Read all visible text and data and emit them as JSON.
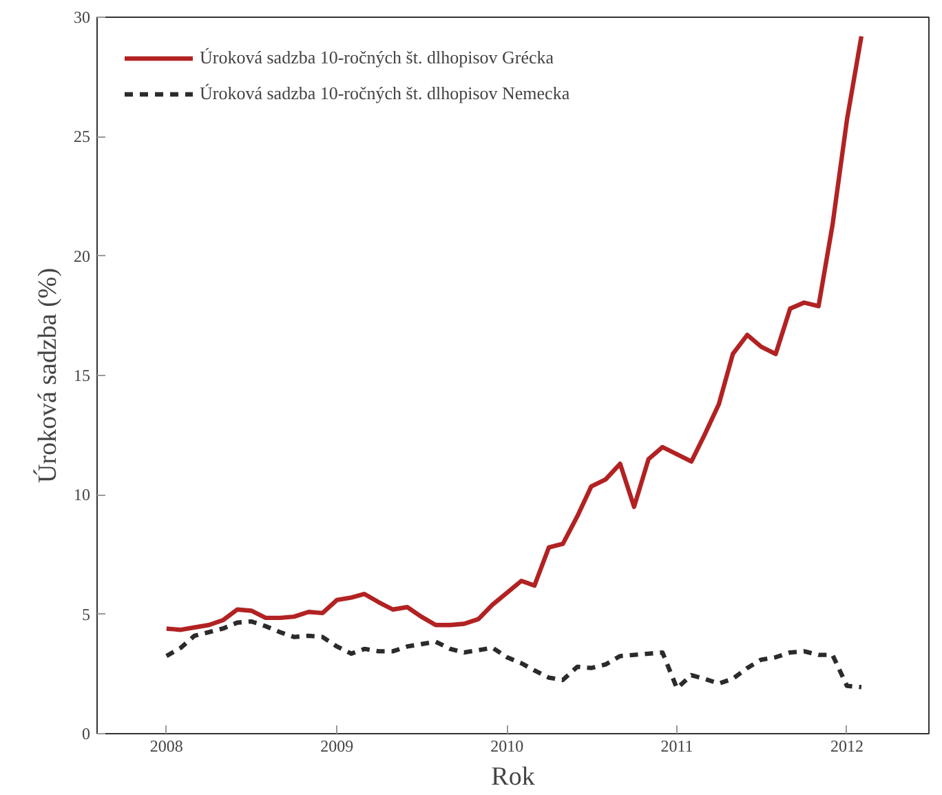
{
  "chart_data": {
    "type": "line",
    "xlabel": "Rok",
    "ylabel": "Úroková sadzba (%)",
    "x": [
      "2008-01",
      "2008-02",
      "2008-03",
      "2008-04",
      "2008-05",
      "2008-06",
      "2008-07",
      "2008-08",
      "2008-09",
      "2008-10",
      "2008-11",
      "2008-12",
      "2009-01",
      "2009-02",
      "2009-03",
      "2009-04",
      "2009-05",
      "2009-06",
      "2009-07",
      "2009-08",
      "2009-09",
      "2009-10",
      "2009-11",
      "2009-12",
      "2010-01",
      "2010-02",
      "2010-03",
      "2010-04",
      "2010-05",
      "2010-06",
      "2010-07",
      "2010-08",
      "2010-09",
      "2010-10",
      "2010-11",
      "2010-12",
      "2011-01",
      "2011-02",
      "2011-03",
      "2011-04",
      "2011-05",
      "2011-06",
      "2011-07",
      "2011-08",
      "2011-09",
      "2011-10",
      "2011-11",
      "2011-12",
      "2012-01",
      "2012-02"
    ],
    "series": [
      {
        "name": "Úroková sadzba 10-ročných št. dlhopisov Grécka",
        "color": "#b22222",
        "line_style": "solid",
        "values": [
          4.4,
          4.35,
          4.45,
          4.55,
          4.75,
          5.2,
          5.15,
          4.85,
          4.85,
          4.9,
          5.1,
          5.05,
          5.6,
          5.7,
          5.85,
          5.5,
          5.2,
          5.3,
          4.9,
          4.55,
          4.55,
          4.6,
          4.8,
          5.4,
          5.9,
          6.4,
          6.2,
          7.8,
          7.95,
          9.1,
          10.35,
          10.65,
          11.3,
          9.5,
          11.5,
          12.0,
          11.7,
          11.4,
          12.5,
          13.8,
          15.9,
          16.7,
          16.2,
          15.9,
          17.8,
          18.05,
          17.9,
          21.3,
          25.7,
          29.2
        ]
      },
      {
        "name": "Úroková sadzba 10-ročných št. dlhopisov Nemecka",
        "color": "#2b2b2b",
        "line_style": "dashed",
        "values": [
          3.25,
          3.6,
          4.1,
          4.25,
          4.4,
          4.65,
          4.7,
          4.5,
          4.25,
          4.05,
          4.1,
          4.05,
          3.65,
          3.35,
          3.55,
          3.45,
          3.45,
          3.65,
          3.75,
          3.85,
          3.55,
          3.4,
          3.5,
          3.6,
          3.2,
          2.95,
          2.65,
          2.35,
          2.25,
          2.8,
          2.75,
          2.9,
          3.25,
          3.3,
          3.35,
          3.4,
          1.9,
          2.45,
          2.3,
          2.1,
          2.3,
          2.75,
          3.1,
          3.2,
          3.4,
          3.45,
          3.3,
          3.3,
          2.0,
          1.95
        ]
      }
    ],
    "xlim": [
      "2007-08-05",
      "2012-06-25"
    ],
    "xticks": [
      {
        "value": "2008-01-01",
        "label": "2008"
      },
      {
        "value": "2009-01-01",
        "label": "2009"
      },
      {
        "value": "2010-01-01",
        "label": "2010"
      },
      {
        "value": "2011-01-01",
        "label": "2011"
      },
      {
        "value": "2012-01-01",
        "label": "2012"
      }
    ],
    "ylim": [
      0,
      30
    ],
    "yticks": [
      0,
      5,
      10,
      15,
      20,
      25,
      30
    ],
    "grid": false,
    "legend": "top left"
  }
}
